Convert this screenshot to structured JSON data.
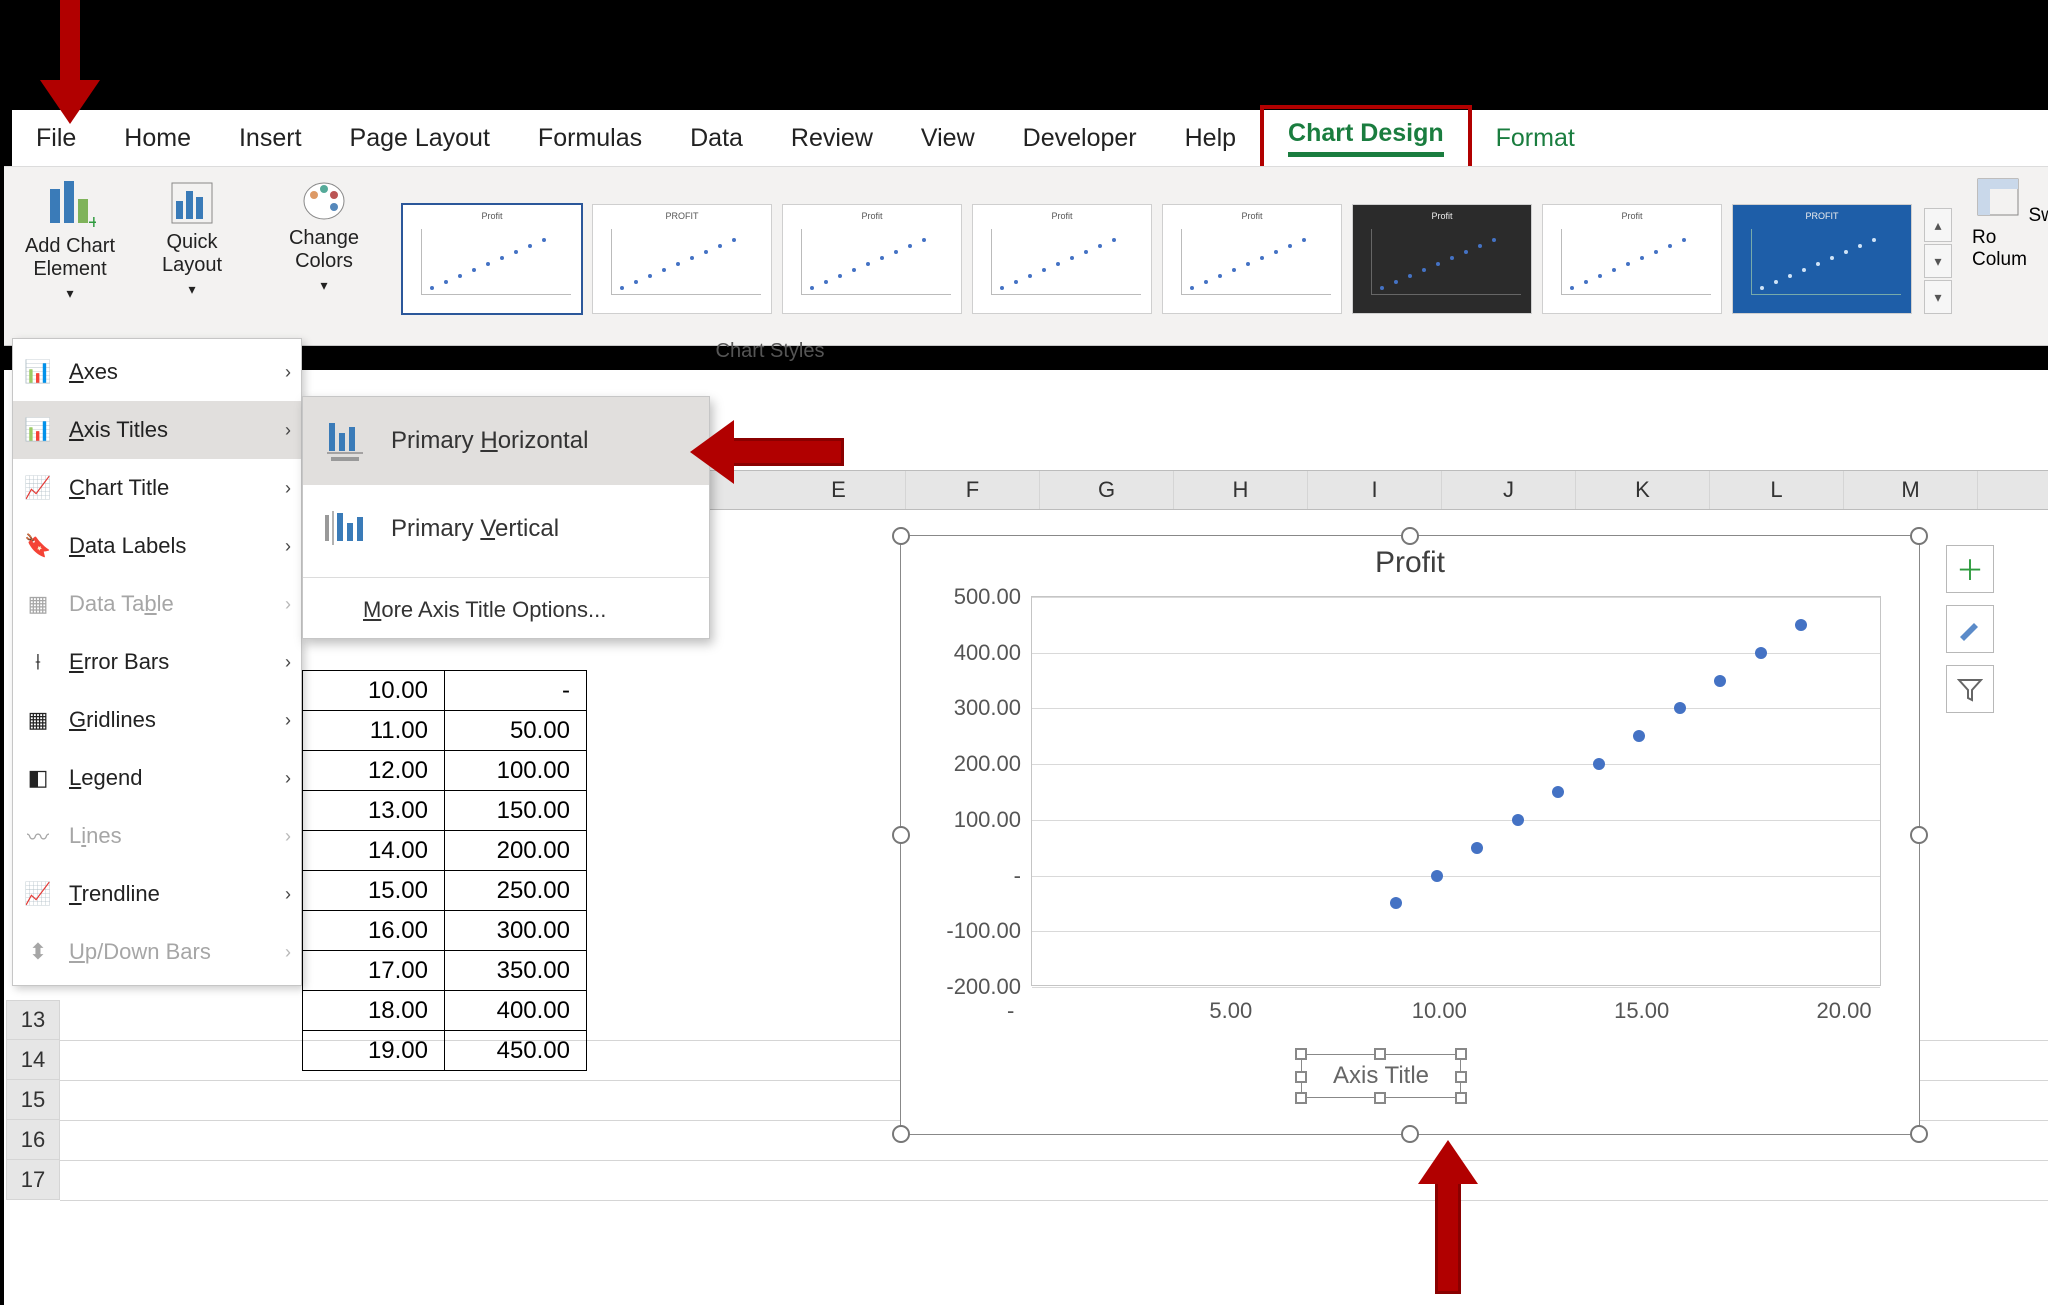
{
  "tabs": {
    "file": "File",
    "home": "Home",
    "insert": "Insert",
    "page_layout": "Page Layout",
    "formulas": "Formulas",
    "data": "Data",
    "review": "Review",
    "view": "View",
    "developer": "Developer",
    "help": "Help",
    "chart_design": "Chart Design",
    "format": "Format"
  },
  "ribbon": {
    "add_chart_element": "Add Chart Element",
    "quick_layout": "Quick Layout",
    "change_colors": "Change Colors",
    "chart_styles_label": "Chart Styles",
    "switch_row_col": "Switch Row/Column"
  },
  "menu1": {
    "axes": "Axes",
    "axis_titles": "Axis Titles",
    "chart_title": "Chart Title",
    "data_labels": "Data Labels",
    "data_table": "Data Table",
    "error_bars": "Error Bars",
    "gridlines": "Gridlines",
    "legend": "Legend",
    "lines": "Lines",
    "trendline": "Trendline",
    "updown_bars": "Up/Down Bars"
  },
  "menu2": {
    "primary_horizontal": "Primary Horizontal",
    "primary_vertical": "Primary Vertical",
    "more": "More Axis Title Options..."
  },
  "grid": {
    "columns": [
      "E",
      "F",
      "G",
      "H",
      "I",
      "J",
      "K",
      "L",
      "M"
    ],
    "rows": [
      "13",
      "14",
      "15",
      "16",
      "17"
    ]
  },
  "table": {
    "rows": [
      [
        "10.00",
        "-"
      ],
      [
        "11.00",
        "50.00"
      ],
      [
        "12.00",
        "100.00"
      ],
      [
        "13.00",
        "150.00"
      ],
      [
        "14.00",
        "200.00"
      ],
      [
        "15.00",
        "250.00"
      ],
      [
        "16.00",
        "300.00"
      ],
      [
        "17.00",
        "350.00"
      ],
      [
        "18.00",
        "400.00"
      ],
      [
        "19.00",
        "450.00"
      ]
    ]
  },
  "chart": {
    "type": "scatter",
    "title": "Profit",
    "axis_title_placeholder": "Axis Title",
    "series_color": "#4472c4",
    "background_color": "#ffffff",
    "gridline_color": "#d9d9d9",
    "border_color": "#c5c5c5",
    "xlim": [
      0,
      21
    ],
    "ylim": [
      -200,
      500
    ],
    "x_ticks": [
      {
        "v": 0,
        "label": "-"
      },
      {
        "v": 5,
        "label": "5.00"
      },
      {
        "v": 10,
        "label": "10.00"
      },
      {
        "v": 15,
        "label": "15.00"
      },
      {
        "v": 20,
        "label": "20.00"
      }
    ],
    "y_ticks": [
      {
        "v": 500,
        "label": "500.00"
      },
      {
        "v": 400,
        "label": "400.00"
      },
      {
        "v": 300,
        "label": "300.00"
      },
      {
        "v": 200,
        "label": "200.00"
      },
      {
        "v": 100,
        "label": "100.00"
      },
      {
        "v": 0,
        "label": "-"
      },
      {
        "v": -100,
        "label": "-100.00"
      },
      {
        "v": -200,
        "label": "-200.00"
      }
    ],
    "points": [
      {
        "x": 9,
        "y": -50
      },
      {
        "x": 10,
        "y": 0
      },
      {
        "x": 11,
        "y": 50
      },
      {
        "x": 12,
        "y": 100
      },
      {
        "x": 13,
        "y": 150
      },
      {
        "x": 14,
        "y": 200
      },
      {
        "x": 15,
        "y": 250
      },
      {
        "x": 16,
        "y": 300
      },
      {
        "x": 17,
        "y": 350
      },
      {
        "x": 18,
        "y": 400
      },
      {
        "x": 19,
        "y": 450
      }
    ],
    "marker_size": 12
  },
  "annotations": {
    "highlight_color": "#b10000"
  }
}
